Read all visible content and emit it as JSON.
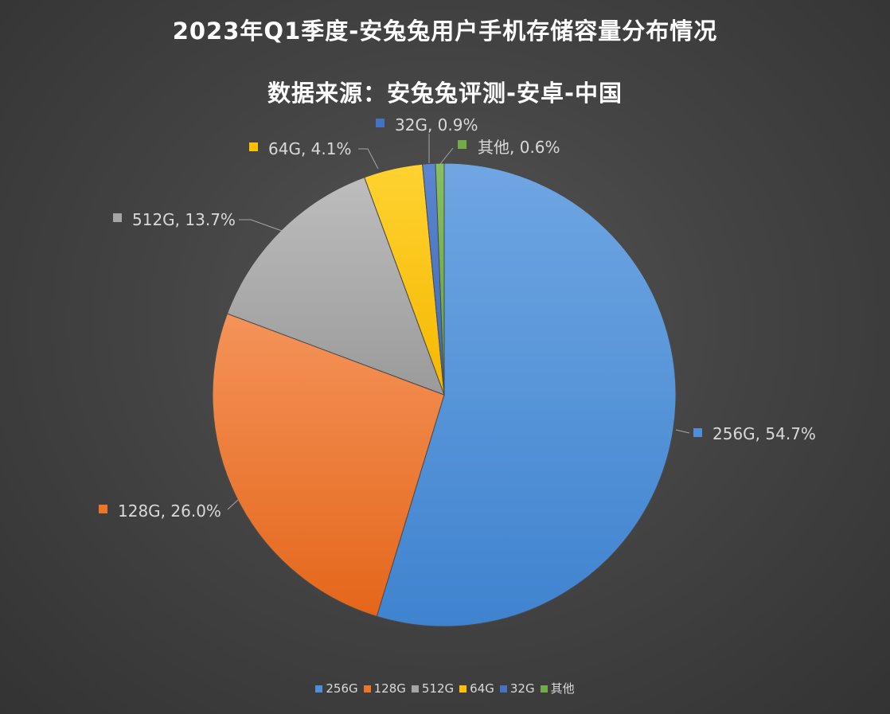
{
  "chart_data": {
    "type": "pie",
    "title": "2023年Q1季度-安兔兔用户手机存储容量分布情况",
    "subtitle": "数据来源：安兔兔评测-安卓-中国",
    "legend_position": "bottom",
    "slices": [
      {
        "label": "256G",
        "value": 54.7,
        "display": "54.7%",
        "color": "#4e8fd8"
      },
      {
        "label": "128G",
        "value": 26.0,
        "display": "26.0%",
        "color": "#ed7528"
      },
      {
        "label": "512G",
        "value": 13.7,
        "display": "13.7%",
        "color": "#a5a5a5"
      },
      {
        "label": "64G",
        "value": 4.1,
        "display": "4.1%",
        "color": "#ffc000"
      },
      {
        "label": "32G",
        "value": 0.9,
        "display": "0.9%",
        "color": "#4472c4"
      },
      {
        "label": "其他",
        "value": 0.6,
        "display": "0.6%",
        "color": "#70ad47"
      }
    ]
  }
}
